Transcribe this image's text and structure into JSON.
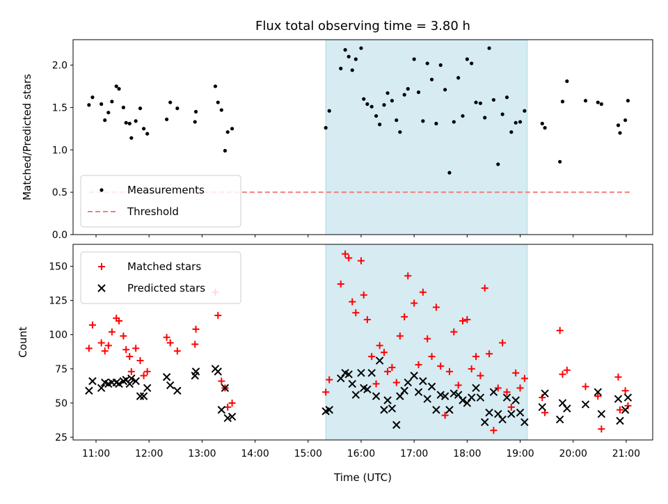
{
  "chart_data": {
    "title": "Flux total observing time = 3.80 h",
    "xlabel": "Time (UTC)",
    "xlim": [
      "10:34",
      "21:30"
    ],
    "xticks": [
      "11:00",
      "12:00",
      "13:00",
      "14:00",
      "15:00",
      "16:00",
      "17:00",
      "18:00",
      "19:00",
      "20:00",
      "21:00"
    ],
    "highlight_span": {
      "start": "15:20",
      "end": "19:08",
      "color": "#add8e6"
    },
    "panels": [
      {
        "type": "scatter",
        "ylabel": "Matched/Predicted stars",
        "ylim": [
          0,
          2.3
        ],
        "yticks": [
          "0.0",
          "0.5",
          "1.0",
          "1.5",
          "2.0"
        ],
        "legend_position": "lower-left",
        "threshold": {
          "name": "Threshold",
          "value": 0.5,
          "x_range": [
            "10:52",
            "21:05"
          ],
          "color": "#f08080"
        },
        "series": [
          {
            "name": "Measurements",
            "marker": "dot",
            "color": "#000000",
            "x": [
              "10:52",
              "10:56",
              "11:06",
              "11:10",
              "11:14",
              "11:18",
              "11:23",
              "11:26",
              "11:31",
              "11:34",
              "11:38",
              "11:40",
              "11:45",
              "11:50",
              "11:54",
              "11:58",
              "12:20",
              "12:24",
              "12:32",
              "12:52",
              "12:53",
              "13:15",
              "13:18",
              "13:22",
              "13:26",
              "13:29",
              "13:34",
              "15:20",
              "15:24",
              "15:37",
              "15:42",
              "15:46",
              "15:50",
              "15:54",
              "16:00",
              "16:03",
              "16:07",
              "16:12",
              "16:17",
              "16:21",
              "16:26",
              "16:30",
              "16:35",
              "16:40",
              "16:44",
              "16:49",
              "16:53",
              "17:00",
              "17:05",
              "17:10",
              "17:15",
              "17:20",
              "17:25",
              "17:30",
              "17:35",
              "17:40",
              "17:45",
              "17:50",
              "17:55",
              "18:00",
              "18:05",
              "18:10",
              "18:15",
              "18:20",
              "18:25",
              "18:30",
              "18:35",
              "18:40",
              "18:45",
              "18:50",
              "18:55",
              "19:00",
              "19:05",
              "19:25",
              "19:28",
              "19:45",
              "19:48",
              "19:53",
              "20:14",
              "20:28",
              "20:32",
              "20:51",
              "20:53",
              "20:59",
              "21:02"
            ],
            "y": [
              1.53,
              1.62,
              1.54,
              1.35,
              1.44,
              1.57,
              1.75,
              1.72,
              1.5,
              1.32,
              1.31,
              1.14,
              1.34,
              1.49,
              1.25,
              1.19,
              1.36,
              1.56,
              1.49,
              1.33,
              1.45,
              1.75,
              1.56,
              1.47,
              0.99,
              1.21,
              1.25,
              1.26,
              1.46,
              1.96,
              2.18,
              2.1,
              1.94,
              2.07,
              2.2,
              1.6,
              1.54,
              1.51,
              1.4,
              1.3,
              1.53,
              1.67,
              1.58,
              1.35,
              1.21,
              1.65,
              1.72,
              2.07,
              1.68,
              1.34,
              2.02,
              1.83,
              1.31,
              2.0,
              1.71,
              0.73,
              1.33,
              1.85,
              1.4,
              2.07,
              2.02,
              1.56,
              1.55,
              1.38,
              2.2,
              1.59,
              0.83,
              1.42,
              1.62,
              1.21,
              1.32,
              1.33,
              1.46,
              1.31,
              1.26,
              0.86,
              1.57,
              1.81,
              1.58,
              1.56,
              1.54,
              1.29,
              1.2,
              1.35,
              1.58
            ]
          }
        ]
      },
      {
        "type": "scatter",
        "ylabel": "Count",
        "ylim": [
          23,
          166
        ],
        "yticks": [
          "25",
          "50",
          "75",
          "100",
          "125",
          "150"
        ],
        "legend_position": "upper-left",
        "series": [
          {
            "name": "Matched stars",
            "marker": "plus",
            "color": "#ff0000",
            "x": [
              "10:52",
              "10:56",
              "11:06",
              "11:10",
              "11:14",
              "11:18",
              "11:23",
              "11:26",
              "11:31",
              "11:34",
              "11:38",
              "11:40",
              "11:45",
              "11:50",
              "11:54",
              "11:58",
              "12:20",
              "12:24",
              "12:32",
              "12:52",
              "12:53",
              "13:15",
              "13:18",
              "13:22",
              "13:26",
              "13:29",
              "13:34",
              "15:20",
              "15:24",
              "15:37",
              "15:42",
              "15:46",
              "15:50",
              "15:54",
              "16:00",
              "16:03",
              "16:07",
              "16:12",
              "16:17",
              "16:21",
              "16:26",
              "16:30",
              "16:35",
              "16:40",
              "16:44",
              "16:49",
              "16:53",
              "17:00",
              "17:05",
              "17:10",
              "17:15",
              "17:20",
              "17:25",
              "17:30",
              "17:35",
              "17:40",
              "17:45",
              "17:50",
              "17:55",
              "18:00",
              "18:05",
              "18:10",
              "18:15",
              "18:20",
              "18:25",
              "18:30",
              "18:35",
              "18:40",
              "18:45",
              "18:50",
              "18:55",
              "19:00",
              "19:05",
              "19:25",
              "19:28",
              "19:45",
              "19:48",
              "19:53",
              "20:14",
              "20:28",
              "20:32",
              "20:51",
              "20:53",
              "20:59",
              "21:02"
            ],
            "y": [
              90,
              107,
              94,
              88,
              92,
              102,
              112,
              110,
              99,
              89,
              84,
              73,
              90,
              81,
              70,
              73,
              98,
              94,
              88,
              93,
              104,
              131,
              114,
              66,
              61,
              47,
              50,
              58,
              67,
              137,
              159,
              156,
              124,
              116,
              154,
              129,
              111,
              84,
              64,
              92,
              87,
              73,
              76,
              65,
              99,
              113,
              143,
              123,
              78,
              131,
              97,
              84,
              120,
              77,
              41,
              73,
              102,
              63,
              110,
              111,
              75,
              84,
              70,
              134,
              86,
              30,
              61,
              94,
              58,
              47,
              72,
              61,
              68,
              54,
              43,
              103,
              71,
              74,
              62,
              55,
              31,
              69,
              45,
              59,
              48
            ]
          },
          {
            "name": "Predicted stars",
            "marker": "x",
            "color": "#000000",
            "x": [
              "10:52",
              "10:56",
              "11:06",
              "11:10",
              "11:14",
              "11:18",
              "11:23",
              "11:26",
              "11:31",
              "11:34",
              "11:38",
              "11:40",
              "11:45",
              "11:50",
              "11:54",
              "11:58",
              "12:20",
              "12:24",
              "12:32",
              "12:52",
              "12:53",
              "13:15",
              "13:18",
              "13:22",
              "13:26",
              "13:29",
              "13:34",
              "15:20",
              "15:24",
              "15:37",
              "15:42",
              "15:46",
              "15:50",
              "15:54",
              "16:00",
              "16:03",
              "16:07",
              "16:12",
              "16:17",
              "16:21",
              "16:26",
              "16:30",
              "16:35",
              "16:40",
              "16:44",
              "16:49",
              "16:53",
              "17:00",
              "17:05",
              "17:10",
              "17:15",
              "17:20",
              "17:25",
              "17:30",
              "17:35",
              "17:40",
              "17:45",
              "17:50",
              "17:55",
              "18:00",
              "18:05",
              "18:10",
              "18:15",
              "18:20",
              "18:25",
              "18:30",
              "18:35",
              "18:40",
              "18:45",
              "18:50",
              "18:55",
              "19:00",
              "19:05",
              "19:25",
              "19:28",
              "19:45",
              "19:48",
              "19:53",
              "20:14",
              "20:28",
              "20:32",
              "20:51",
              "20:53",
              "20:59",
              "21:02"
            ],
            "y": [
              59,
              66,
              61,
              65,
              64,
              65,
              65,
              64,
              66,
              67,
              64,
              68,
              66,
              55,
              55,
              61,
              69,
              63,
              59,
              70,
              73,
              75,
              73,
              45,
              61,
              39,
              40,
              44,
              45,
              68,
              72,
              71,
              64,
              56,
              72,
              61,
              60,
              72,
              55,
              81,
              45,
              52,
              46,
              34,
              55,
              59,
              65,
              70,
              58,
              66,
              53,
              62,
              45,
              56,
              55,
              45,
              57,
              56,
              52,
              50,
              54,
              61,
              54,
              36,
              43,
              58,
              42,
              38,
              54,
              42,
              52,
              43,
              36,
              47,
              57,
              38,
              50,
              46,
              49,
              58,
              42,
              53,
              37,
              45,
              54
            ]
          }
        ]
      }
    ]
  }
}
